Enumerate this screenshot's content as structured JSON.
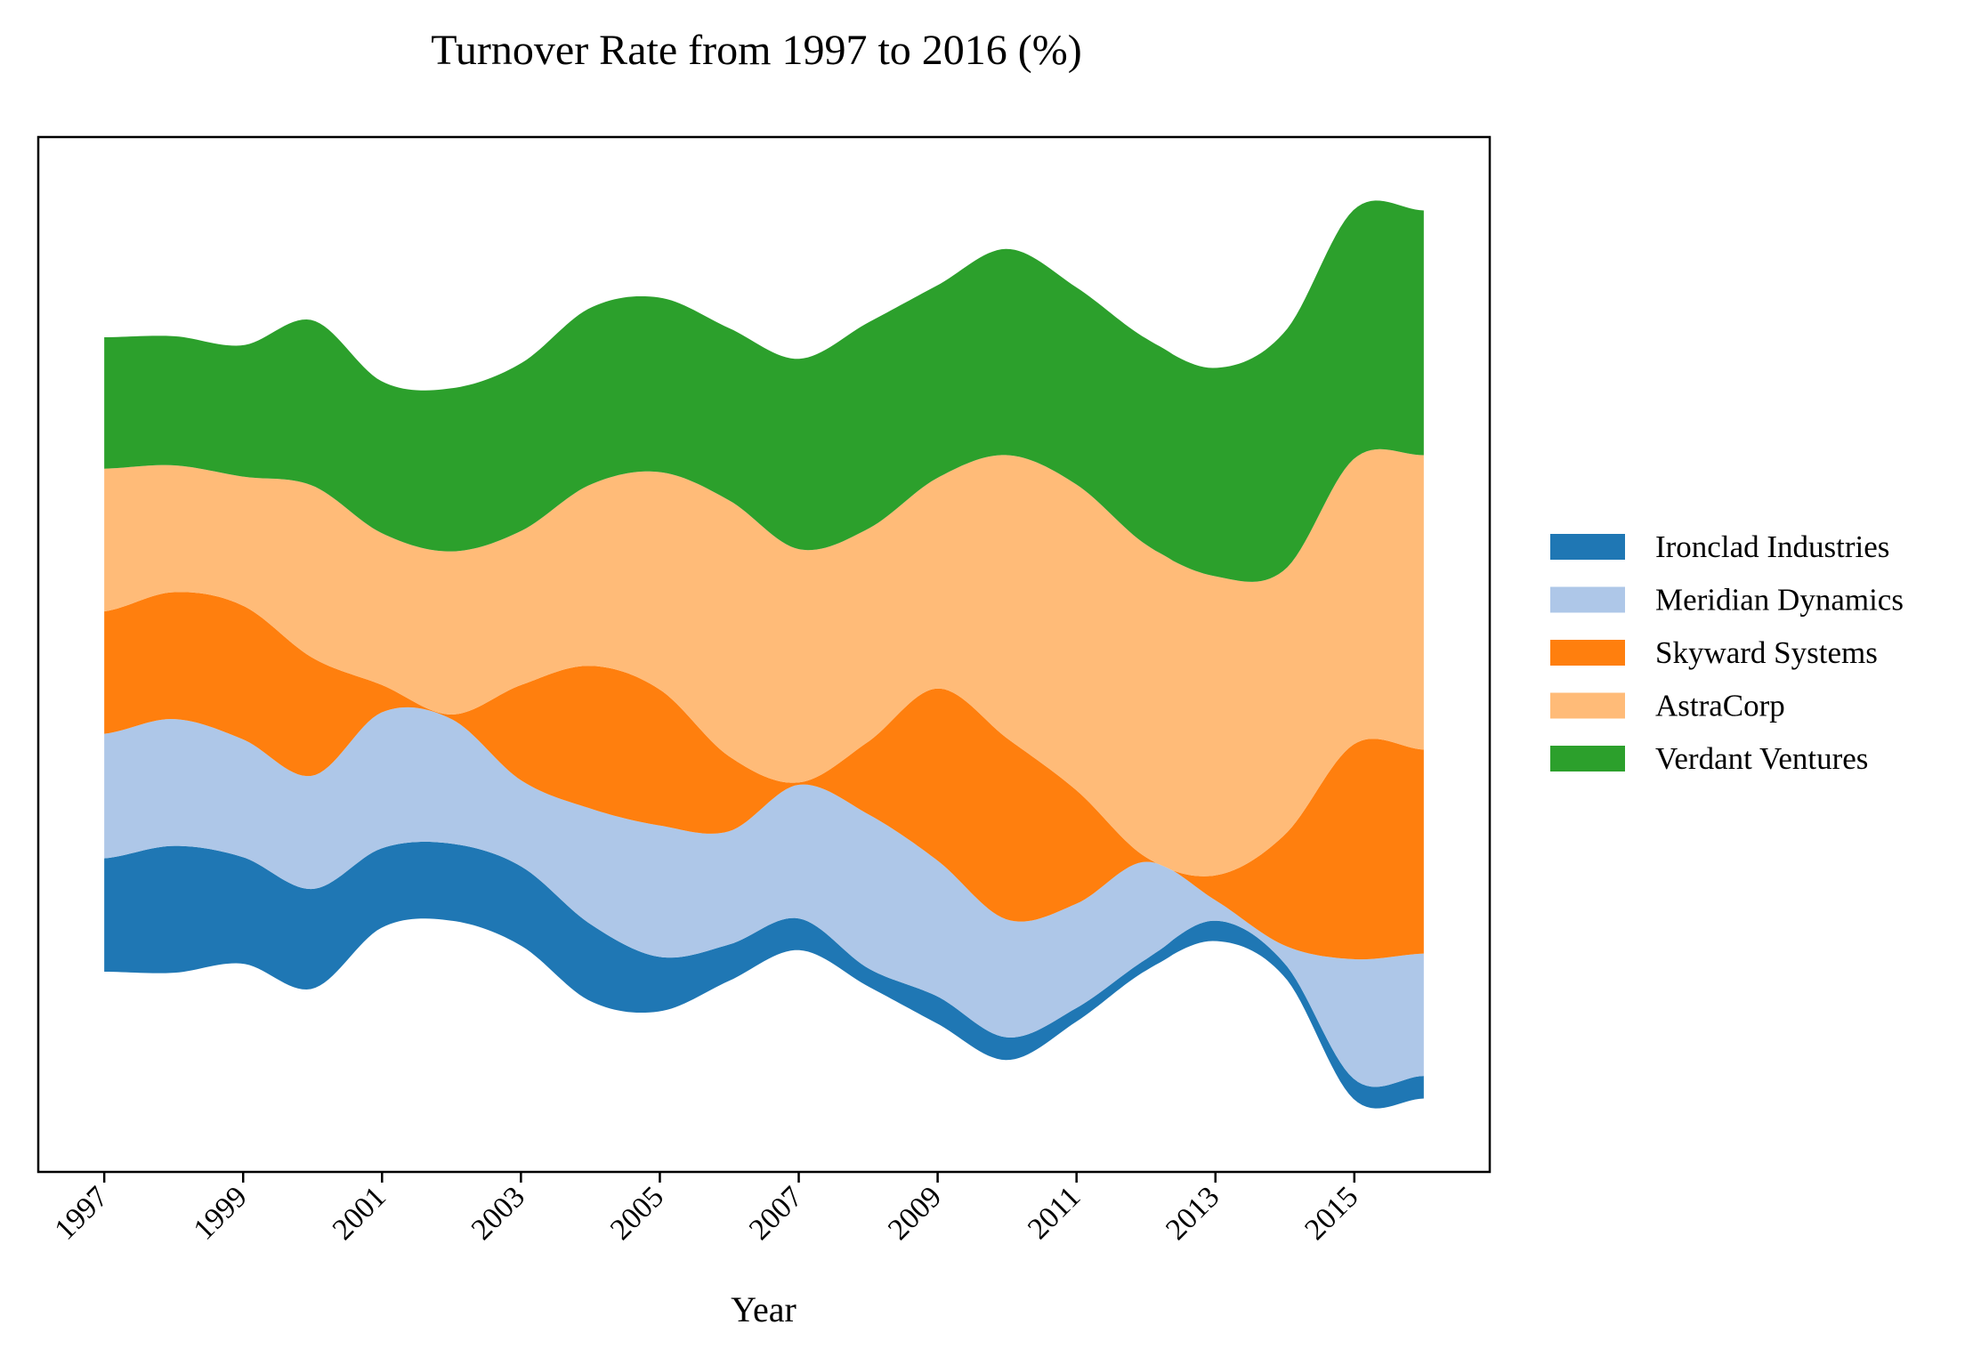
{
  "chart_data": {
    "type": "area",
    "subtype": "streamgraph",
    "title": "Turnover Rate from 1997 to 2016 (%)",
    "xlabel": "Year",
    "ylabel": "",
    "x": [
      1997,
      1998,
      1999,
      2000,
      2001,
      2002,
      2003,
      2004,
      2005,
      2006,
      2007,
      2008,
      2009,
      2010,
      2011,
      2012,
      2013,
      2014,
      2015,
      2016
    ],
    "xticks": [
      "1997",
      "1999",
      "2001",
      "2003",
      "2005",
      "2007",
      "2009",
      "2011",
      "2013",
      "2015"
    ],
    "xlim": [
      1996.05,
      2016.95
    ],
    "grid": false,
    "legend_position": "right",
    "series": [
      {
        "name": "Ironclad Industries",
        "color": "#1f77b4",
        "values": [
          5.0,
          5.6,
          4.7,
          4.4,
          3.5,
          3.4,
          3.5,
          3.4,
          2.4,
          1.6,
          1.4,
          0.8,
          1.2,
          1.0,
          0.6,
          0.5,
          0.9,
          0.6,
          0.9,
          1.0
        ]
      },
      {
        "name": "Meridian Dynamics",
        "color": "#aec7e8",
        "values": [
          5.5,
          5.6,
          5.2,
          5.0,
          6.0,
          5.5,
          3.8,
          5.1,
          5.8,
          5.0,
          5.9,
          6.8,
          6.0,
          5.2,
          4.6,
          4.3,
          0.9,
          0.8,
          5.3,
          5.4
        ]
      },
      {
        "name": "Skyward Systems",
        "color": "#ff7f0e",
        "values": [
          5.4,
          5.6,
          5.9,
          5.2,
          1.2,
          0.2,
          4.2,
          6.3,
          6.0,
          3.3,
          0.1,
          3.2,
          7.6,
          8.0,
          5.0,
          0.2,
          1.1,
          4.9,
          9.5,
          9.0
        ]
      },
      {
        "name": "AstraCorp",
        "color": "#ffbb78",
        "values": [
          6.3,
          5.6,
          5.7,
          7.6,
          6.7,
          7.2,
          6.8,
          8.0,
          9.6,
          11.3,
          10.3,
          9.4,
          9.3,
          12.5,
          13.5,
          13.8,
          13.2,
          11.7,
          12.6,
          13.0
        ]
      },
      {
        "name": "Verdant Ventures",
        "color": "#2ca02c",
        "values": [
          5.8,
          5.7,
          5.8,
          7.3,
          6.7,
          7.2,
          7.4,
          7.8,
          7.7,
          7.6,
          8.4,
          9.1,
          8.5,
          9.1,
          8.7,
          9.1,
          9.2,
          10.5,
          11.0,
          10.8
        ]
      }
    ]
  }
}
